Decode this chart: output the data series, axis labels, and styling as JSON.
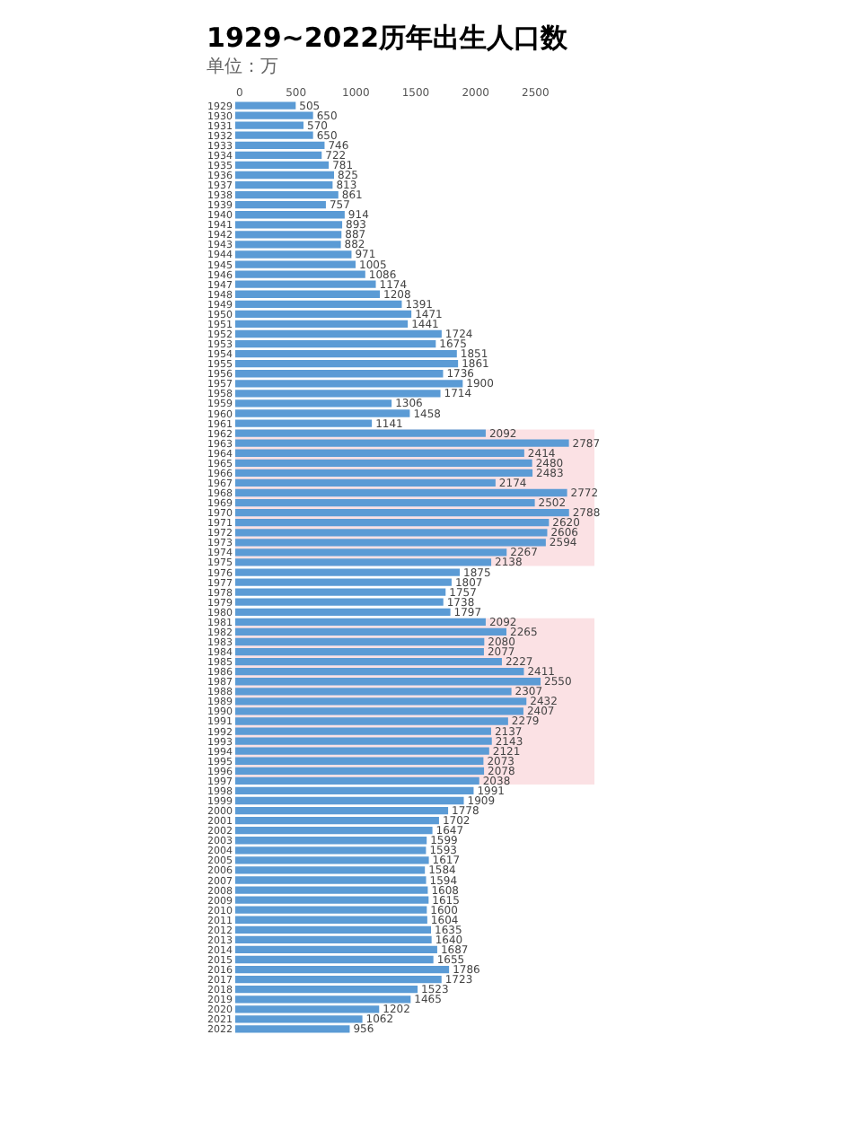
{
  "chart_data": {
    "type": "bar",
    "orientation": "horizontal",
    "title": "1929~2022历年出生人口数",
    "subtitle": "单位：万",
    "categories": [
      "1929",
      "1930",
      "1931",
      "1932",
      "1933",
      "1934",
      "1935",
      "1936",
      "1937",
      "1938",
      "1939",
      "1940",
      "1941",
      "1942",
      "1943",
      "1944",
      "1945",
      "1946",
      "1947",
      "1948",
      "1949",
      "1950",
      "1951",
      "1952",
      "1953",
      "1954",
      "1955",
      "1956",
      "1957",
      "1958",
      "1959",
      "1960",
      "1961",
      "1962",
      "1963",
      "1964",
      "1965",
      "1966",
      "1967",
      "1968",
      "1969",
      "1970",
      "1971",
      "1972",
      "1973",
      "1974",
      "1975",
      "1976",
      "1977",
      "1978",
      "1979",
      "1980",
      "1981",
      "1982",
      "1983",
      "1984",
      "1985",
      "1986",
      "1987",
      "1988",
      "1989",
      "1990",
      "1991",
      "1992",
      "1993",
      "1994",
      "1995",
      "1996",
      "1997",
      "1998",
      "1999",
      "2000",
      "2001",
      "2002",
      "2003",
      "2004",
      "2005",
      "2006",
      "2007",
      "2008",
      "2009",
      "2010",
      "2011",
      "2012",
      "2013",
      "2014",
      "2015",
      "2016",
      "2017",
      "2018",
      "2019",
      "2020",
      "2021",
      "2022"
    ],
    "values": [
      505,
      650,
      570,
      650,
      746,
      722,
      781,
      825,
      813,
      861,
      757,
      914,
      893,
      887,
      882,
      971,
      1005,
      1086,
      1174,
      1208,
      1391,
      1471,
      1441,
      1724,
      1675,
      1851,
      1861,
      1736,
      1900,
      1714,
      1306,
      1458,
      1141,
      2092,
      2787,
      2414,
      2480,
      2483,
      2174,
      2772,
      2502,
      2788,
      2620,
      2606,
      2594,
      2267,
      2138,
      1875,
      1807,
      1757,
      1738,
      1797,
      2092,
      2265,
      2080,
      2077,
      2227,
      2411,
      2550,
      2307,
      2432,
      2407,
      2279,
      2137,
      2143,
      2121,
      2073,
      2078,
      2038,
      1991,
      1909,
      1778,
      1702,
      1647,
      1599,
      1593,
      1617,
      1584,
      1594,
      1608,
      1615,
      1600,
      1604,
      1635,
      1640,
      1687,
      1655,
      1786,
      1723,
      1523,
      1465,
      1202,
      1062,
      956
    ],
    "color": "#5b9bd5",
    "data_labels": true,
    "xlim": [
      0,
      3000
    ],
    "xticks": [
      0,
      500,
      1000,
      1500,
      2000,
      2500
    ],
    "grid": false,
    "bands": [
      {
        "axis": "y",
        "from": "1962",
        "to": "1975",
        "color": "#fadadd"
      },
      {
        "axis": "y",
        "from": "1981",
        "to": "1997",
        "color": "#fadadd"
      }
    ]
  }
}
